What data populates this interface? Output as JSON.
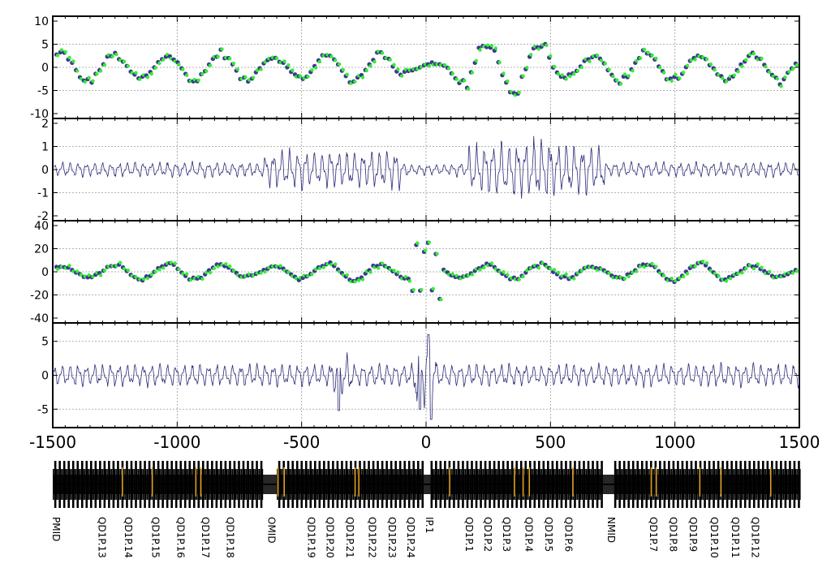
{
  "chart_data": [
    {
      "type": "scatter",
      "panel": "top-dots",
      "xlim": [
        -1500,
        1500
      ],
      "ylim": [
        -10,
        10
      ],
      "yticks": [
        "10",
        "5",
        "0",
        "-5",
        "-10"
      ],
      "grid": true,
      "colors": {
        "series_a": "#3a3a8c",
        "series_b": "#33ee33"
      },
      "pattern": "oscillating points around 0, amplitude up to about 5 on both sides, larger excursions up to about 10 between x=150 and x=500"
    },
    {
      "type": "line",
      "panel": "second-wave",
      "xlim": [
        -1500,
        1500
      ],
      "ylim": [
        -2,
        2
      ],
      "yticks": [
        "2",
        "1",
        "0",
        "-1",
        "-2"
      ],
      "grid": true,
      "colors": {
        "line": "#2c2c7a"
      },
      "pattern": "dense oscillation, amplitude about 0.4 near the ends, about 1 around x=-600..-100, about 1.7 around x=200..700, quiet near x=0"
    },
    {
      "type": "scatter",
      "panel": "third-dots",
      "xlim": [
        -1500,
        1500
      ],
      "ylim": [
        -40,
        40
      ],
      "yticks": [
        "40",
        "20",
        "0",
        "-20",
        "-40"
      ],
      "grid": true,
      "colors": {
        "series_a": "#3a3a8c",
        "series_b": "#33ee33"
      },
      "pattern": "oscillating points around 0, amplitude about 10, spikes to +33 and -37 at x close to 0"
    },
    {
      "type": "line",
      "panel": "bottom-wave",
      "xlim": [
        -1500,
        1500
      ],
      "ylim": [
        -7,
        7
      ],
      "yticks": [
        "5",
        "0",
        "-5"
      ],
      "grid": true,
      "colors": {
        "line": "#2c2c7a"
      },
      "pattern": "dense oscillation, amplitude about 2, spikes to about +6 and -7 near x=0 and about -5 near x=-350"
    }
  ],
  "x_axis": {
    "ticks": [
      -1500,
      -1000,
      -500,
      0,
      500,
      1000,
      1500
    ],
    "tick_labels": [
      "-1500",
      "-1000",
      "-500",
      "0",
      "500",
      "1000",
      "1500"
    ]
  },
  "lattice": {
    "element_color": "#000000",
    "marker_color": "#e0a020",
    "labels": [
      {
        "text": "PMID",
        "s": -1500
      },
      {
        "text": "QD1P.13",
        "s": -1315
      },
      {
        "text": "QD1P.14",
        "s": -1210
      },
      {
        "text": "QD1P.15",
        "s": -1100
      },
      {
        "text": "QD1P.16",
        "s": -1000
      },
      {
        "text": "QD1P.17",
        "s": -900
      },
      {
        "text": "QD1P.18",
        "s": -800
      },
      {
        "text": "OMID",
        "s": -635
      },
      {
        "text": "QD1P.19",
        "s": -475
      },
      {
        "text": "QD1P.20",
        "s": -400
      },
      {
        "text": "QD1P.21",
        "s": -320
      },
      {
        "text": "QD1P.22",
        "s": -230
      },
      {
        "text": "QD1P.23",
        "s": -150
      },
      {
        "text": "QD1P.24",
        "s": -75
      },
      {
        "text": "IP.1",
        "s": 0
      },
      {
        "text": "QD1P.1",
        "s": 160
      },
      {
        "text": "QD1P.2",
        "s": 235
      },
      {
        "text": "QD1P.3",
        "s": 310
      },
      {
        "text": "QD1P.4",
        "s": 400
      },
      {
        "text": "QD1P.5",
        "s": 480
      },
      {
        "text": "QD1P.6",
        "s": 560
      },
      {
        "text": "NMID",
        "s": 730
      },
      {
        "text": "QD1P.7",
        "s": 900
      },
      {
        "text": "QD1P.8",
        "s": 980
      },
      {
        "text": "QD1P.9",
        "s": 1060
      },
      {
        "text": "QD1P.10",
        "s": 1145
      },
      {
        "text": "QD1P.11",
        "s": 1230
      },
      {
        "text": "QD1P.12",
        "s": 1310
      }
    ],
    "markers_s": [
      -1220,
      -1100,
      -925,
      -905,
      -595,
      -570,
      -285,
      -270,
      95,
      355,
      390,
      415,
      590,
      905,
      925,
      1100,
      1185,
      1385
    ]
  }
}
